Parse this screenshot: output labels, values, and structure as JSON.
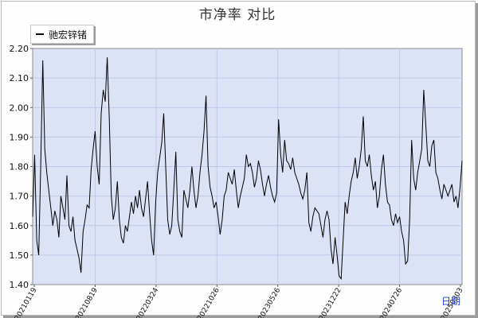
{
  "title": "市净率  对比",
  "legend": {
    "label": "驰宏锌锗"
  },
  "corner_link": "日期",
  "chart_data": {
    "type": "line",
    "title": "市净率  对比",
    "xlabel": "日期",
    "ylabel": "",
    "ylim": [
      1.4,
      2.2
    ],
    "yticks": [
      "1.40",
      "1.50",
      "1.60",
      "1.70",
      "1.80",
      "1.90",
      "2.00",
      "2.10",
      "2.20"
    ],
    "xticks": [
      "20210119",
      "20210819",
      "20220324",
      "20221026",
      "20230526",
      "20231222",
      "20240726",
      "20250303"
    ],
    "grid": true,
    "legend_position": "top-left",
    "series": [
      {
        "name": "驰宏锌锗",
        "color": "#000000",
        "values": [
          1.63,
          1.84,
          1.55,
          1.5,
          1.8,
          2.16,
          1.86,
          1.78,
          1.72,
          1.66,
          1.6,
          1.65,
          1.62,
          1.56,
          1.7,
          1.66,
          1.62,
          1.77,
          1.6,
          1.58,
          1.63,
          1.55,
          1.52,
          1.49,
          1.44,
          1.58,
          1.62,
          1.67,
          1.66,
          1.79,
          1.86,
          1.92,
          1.8,
          1.74,
          1.98,
          2.06,
          2.02,
          2.17,
          1.96,
          1.7,
          1.62,
          1.66,
          1.75,
          1.62,
          1.56,
          1.54,
          1.6,
          1.58,
          1.63,
          1.68,
          1.64,
          1.7,
          1.66,
          1.72,
          1.66,
          1.63,
          1.69,
          1.75,
          1.64,
          1.55,
          1.5,
          1.68,
          1.78,
          1.83,
          1.88,
          1.98,
          1.8,
          1.62,
          1.57,
          1.6,
          1.72,
          1.85,
          1.62,
          1.58,
          1.56,
          1.72,
          1.69,
          1.66,
          1.72,
          1.8,
          1.72,
          1.66,
          1.7,
          1.78,
          1.84,
          1.92,
          2.04,
          1.8,
          1.73,
          1.7,
          1.66,
          1.68,
          1.63,
          1.57,
          1.62,
          1.7,
          1.72,
          1.78,
          1.76,
          1.74,
          1.79,
          1.72,
          1.66,
          1.7,
          1.73,
          1.76,
          1.84,
          1.8,
          1.81,
          1.78,
          1.73,
          1.76,
          1.82,
          1.79,
          1.74,
          1.7,
          1.74,
          1.77,
          1.73,
          1.7,
          1.68,
          1.71,
          1.96,
          1.84,
          1.78,
          1.89,
          1.82,
          1.81,
          1.79,
          1.83,
          1.78,
          1.76,
          1.74,
          1.71,
          1.69,
          1.72,
          1.78,
          1.61,
          1.58,
          1.63,
          1.66,
          1.65,
          1.64,
          1.6,
          1.56,
          1.62,
          1.65,
          1.62,
          1.52,
          1.47,
          1.56,
          1.5,
          1.43,
          1.42,
          1.55,
          1.68,
          1.64,
          1.7,
          1.75,
          1.78,
          1.83,
          1.76,
          1.8,
          1.86,
          1.97,
          1.82,
          1.8,
          1.84,
          1.77,
          1.72,
          1.75,
          1.66,
          1.7,
          1.79,
          1.84,
          1.74,
          1.68,
          1.67,
          1.62,
          1.6,
          1.64,
          1.61,
          1.63,
          1.58,
          1.55,
          1.47,
          1.48,
          1.62,
          1.89,
          1.76,
          1.72,
          1.78,
          1.82,
          1.86,
          2.06,
          1.94,
          1.82,
          1.8,
          1.87,
          1.89,
          1.78,
          1.76,
          1.72,
          1.69,
          1.74,
          1.72,
          1.7,
          1.72,
          1.74,
          1.68,
          1.7,
          1.66,
          1.73,
          1.82
        ]
      }
    ]
  }
}
